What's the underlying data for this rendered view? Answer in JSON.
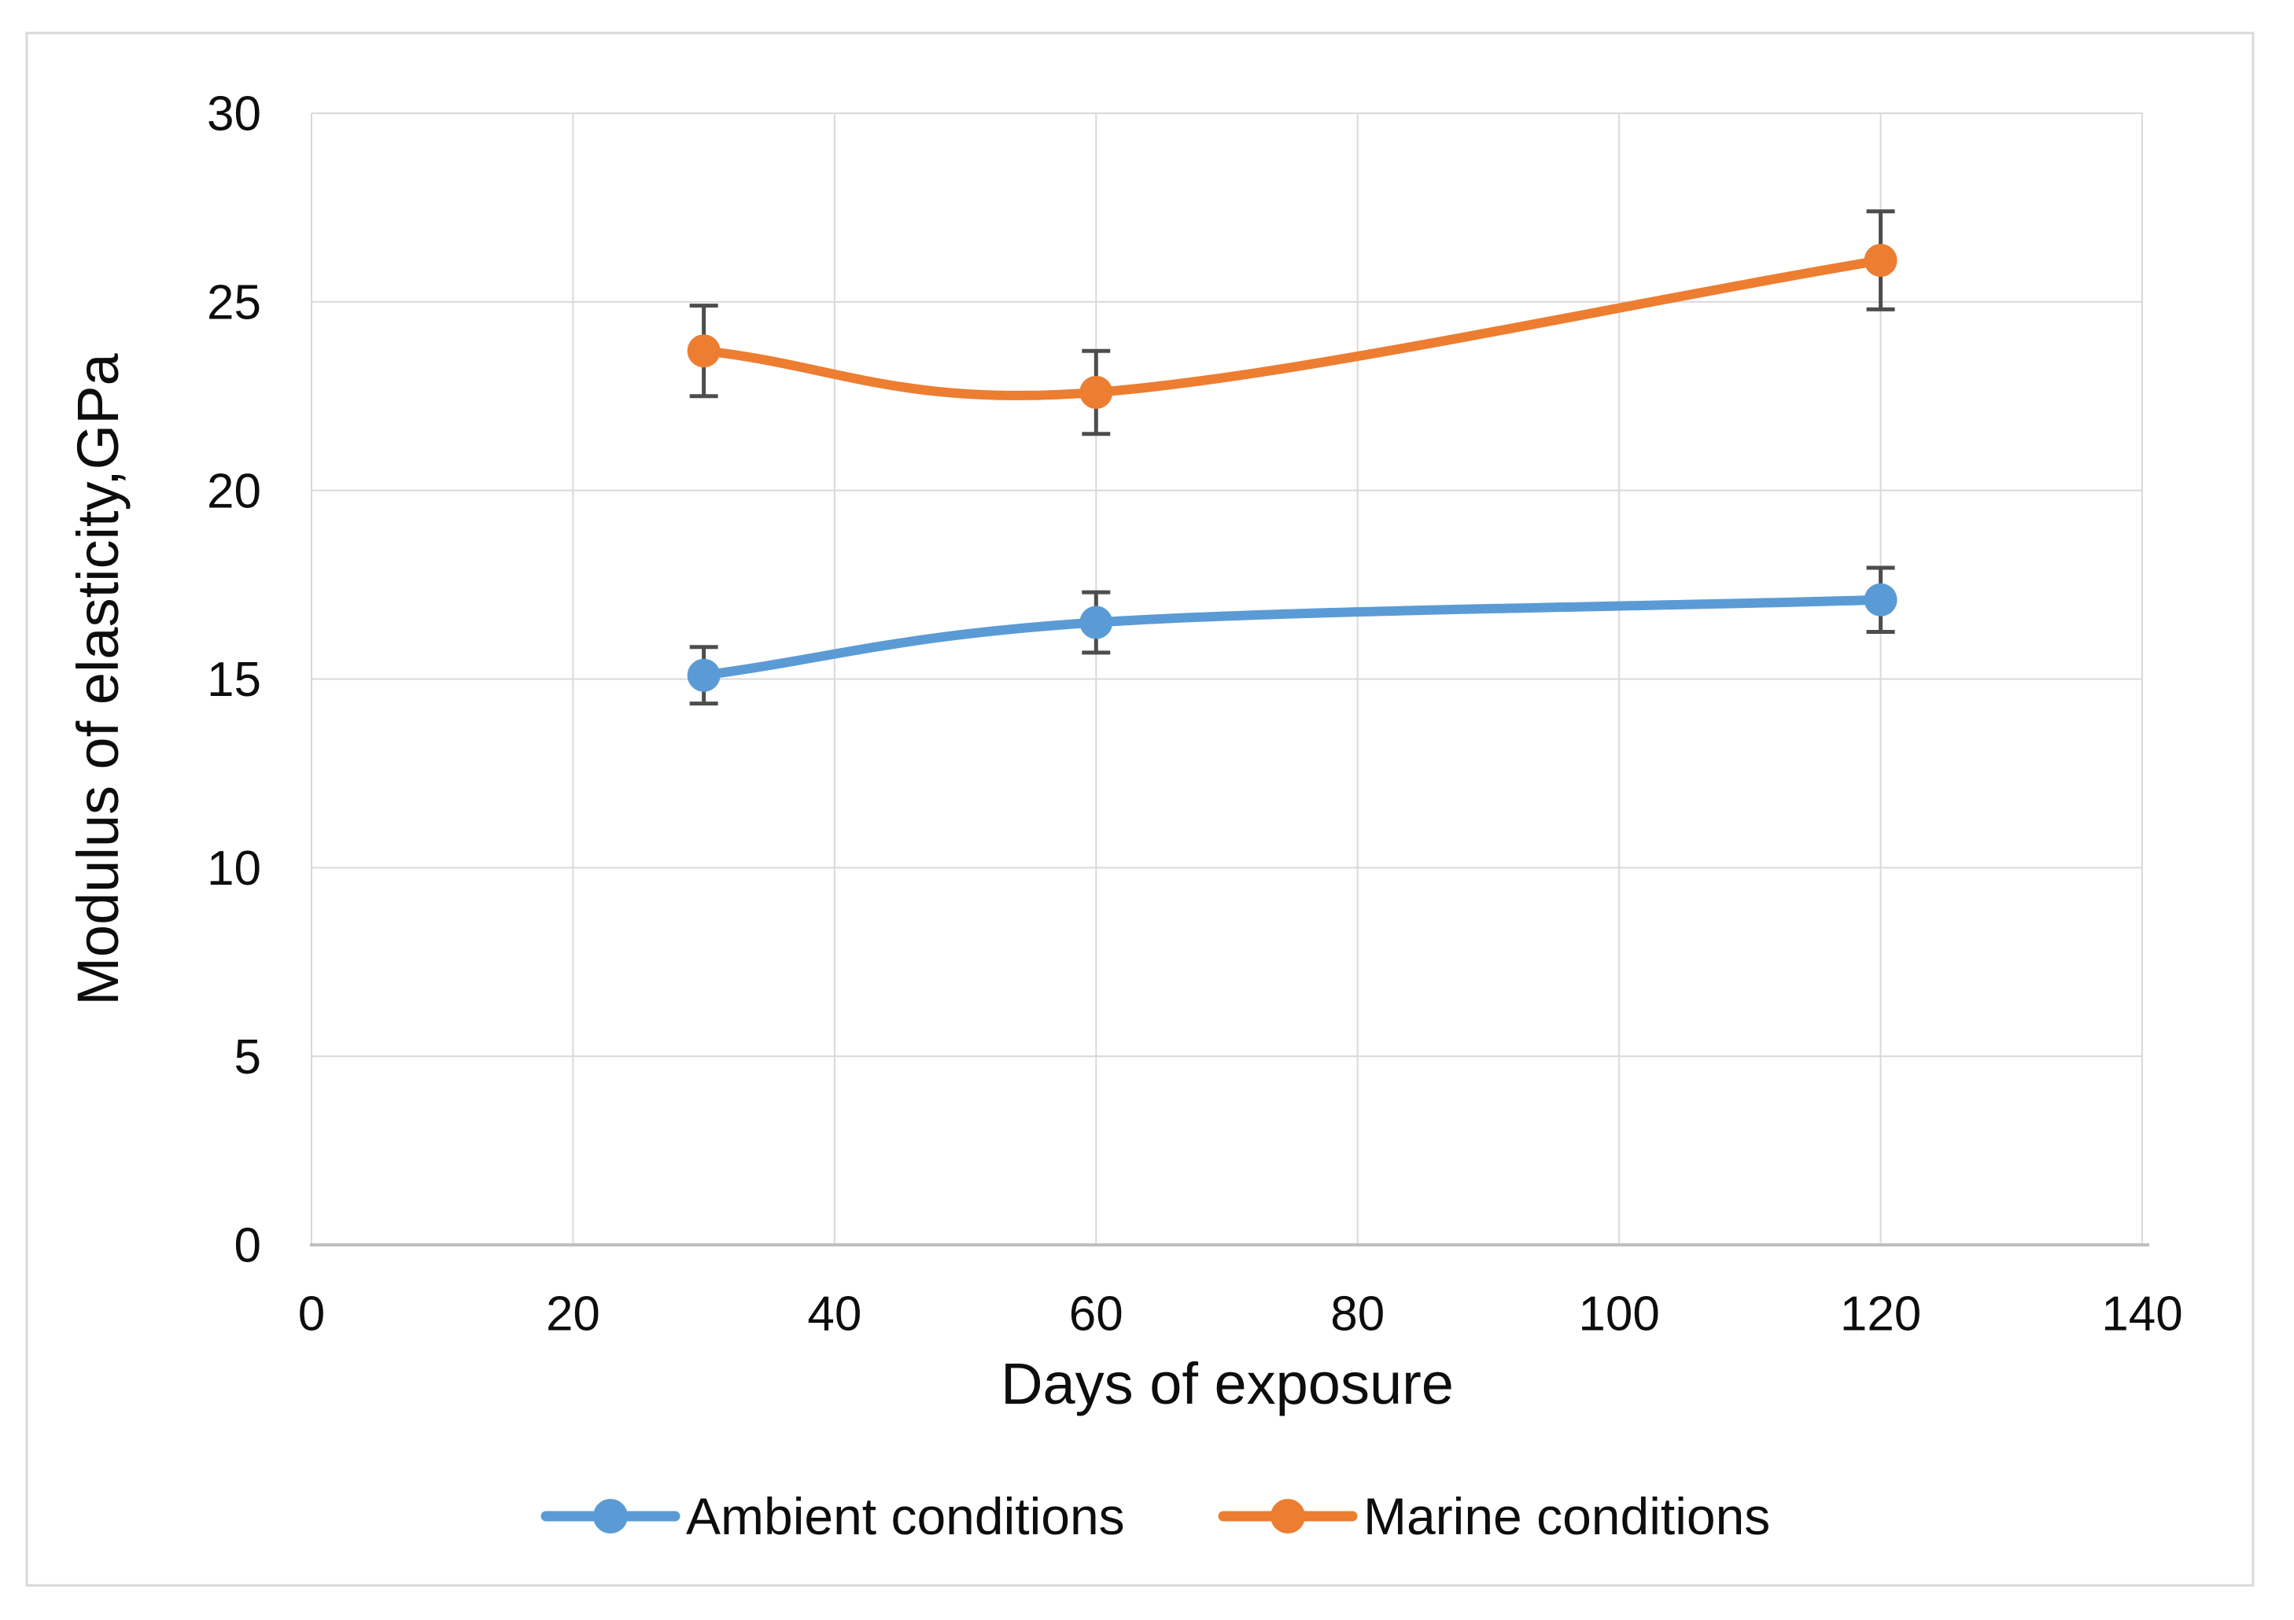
{
  "figure": {
    "background_color": "#ffffff",
    "border_color": "#d9d9d9"
  },
  "chart_data": {
    "type": "line",
    "title": "",
    "xlabel": "Days of exposure",
    "ylabel": "Modulus of elasticity,GPa",
    "x": [
      30,
      60,
      120
    ],
    "series": [
      {
        "name": "Ambient conditions",
        "color": "#5B9BD5",
        "values": [
          15.1,
          16.5,
          17.1
        ],
        "errors": [
          0.75,
          0.8,
          0.85
        ]
      },
      {
        "name": "Marine conditions",
        "color": "#ED7D31",
        "values": [
          23.7,
          22.6,
          26.1
        ],
        "errors": [
          1.2,
          1.1,
          1.3
        ]
      }
    ],
    "xlim": [
      0,
      140
    ],
    "ylim": [
      0,
      30
    ],
    "x_ticks": [
      0,
      20,
      40,
      60,
      80,
      100,
      120,
      140
    ],
    "y_ticks": [
      0,
      5,
      10,
      15,
      20,
      25,
      30
    ],
    "grid": true,
    "smoothed_lines": true,
    "marker": "circle",
    "legend_position": "bottom",
    "gridline_color": "#d9d9d9",
    "axis_line_color": "#bfbfbf",
    "error_bar_color": "#4d4d4d",
    "text_color": "#0d0d0d"
  }
}
